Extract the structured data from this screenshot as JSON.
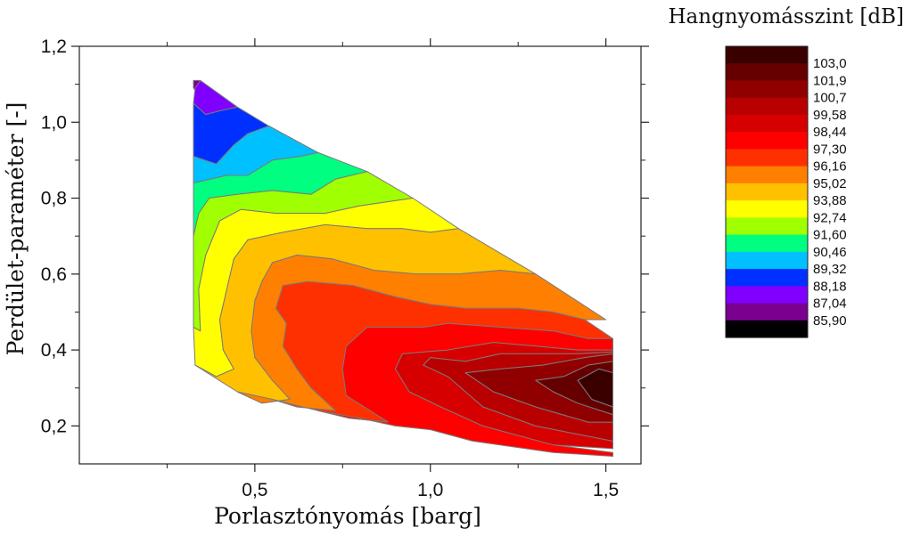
{
  "chart_data": {
    "type": "contour",
    "xlabel": "Porlasztónyomás [barg]",
    "ylabel": "Perdület-paraméter [-]",
    "legend_title": "Hangnyomásszint [dB]",
    "xlim": [
      0.0,
      1.6
    ],
    "ylim": [
      0.1,
      1.2
    ],
    "x_ticks": [
      {
        "value": 0.5,
        "label": "0,5"
      },
      {
        "value": 1.0,
        "label": "1,0"
      },
      {
        "value": 1.5,
        "label": "1,5"
      }
    ],
    "y_ticks": [
      {
        "value": 0.2,
        "label": "0,2"
      },
      {
        "value": 0.4,
        "label": "0,4"
      },
      {
        "value": 0.6,
        "label": "0,6"
      },
      {
        "value": 0.8,
        "label": "0,8"
      },
      {
        "value": 1.0,
        "label": "1,0"
      },
      {
        "value": 1.2,
        "label": "1,2"
      }
    ],
    "legend_location": "right",
    "levels": [
      "103,0",
      "101,9",
      "100,7",
      "99,58",
      "98,44",
      "97,30",
      "96,16",
      "95,02",
      "93,88",
      "92,74",
      "91,60",
      "90,46",
      "89,32",
      "88,18",
      "87,04",
      "85,90"
    ],
    "colors": [
      "#3a0000",
      "#660000",
      "#910000",
      "#b80000",
      "#d60000",
      "#ff0000",
      "#ff3000",
      "#ff8000",
      "#ffc000",
      "#ffff00",
      "#a0ff00",
      "#00ff80",
      "#00c0ff",
      "#0030ff",
      "#8000ff",
      "#7a0090",
      "#000000"
    ],
    "bands": [
      {
        "index": 15,
        "points": [
          [
            0.345,
            1.11
          ],
          [
            0.37,
            1.08
          ],
          [
            0.34,
            1.07
          ],
          [
            0.325,
            1.09
          ],
          [
            0.325,
            1.11
          ]
        ]
      },
      {
        "index": 14,
        "points": [
          [
            0.33,
            1.09
          ],
          [
            0.345,
            1.11
          ],
          [
            0.45,
            1.04
          ],
          [
            0.4,
            1.03
          ],
          [
            0.36,
            1.02
          ],
          [
            0.325,
            1.05
          ]
        ]
      },
      {
        "index": 13,
        "points": [
          [
            0.325,
            1.05
          ],
          [
            0.36,
            1.02
          ],
          [
            0.4,
            1.03
          ],
          [
            0.45,
            1.04
          ],
          [
            0.54,
            0.99
          ],
          [
            0.48,
            0.97
          ],
          [
            0.44,
            0.94
          ],
          [
            0.39,
            0.89
          ],
          [
            0.325,
            0.91
          ]
        ]
      },
      {
        "index": 12,
        "points": [
          [
            0.325,
            0.91
          ],
          [
            0.39,
            0.89
          ],
          [
            0.44,
            0.94
          ],
          [
            0.48,
            0.97
          ],
          [
            0.54,
            0.99
          ],
          [
            0.68,
            0.92
          ],
          [
            0.63,
            0.91
          ],
          [
            0.55,
            0.9
          ],
          [
            0.48,
            0.86
          ],
          [
            0.42,
            0.86
          ],
          [
            0.325,
            0.84
          ]
        ]
      },
      {
        "index": 11,
        "points": [
          [
            0.325,
            0.84
          ],
          [
            0.42,
            0.86
          ],
          [
            0.48,
            0.86
          ],
          [
            0.55,
            0.9
          ],
          [
            0.63,
            0.91
          ],
          [
            0.68,
            0.92
          ],
          [
            0.82,
            0.87
          ],
          [
            0.73,
            0.85
          ],
          [
            0.66,
            0.81
          ],
          [
            0.55,
            0.82
          ],
          [
            0.45,
            0.81
          ],
          [
            0.37,
            0.8
          ],
          [
            0.34,
            0.76
          ],
          [
            0.325,
            0.7
          ]
        ]
      },
      {
        "index": 10,
        "points": [
          [
            0.325,
            0.7
          ],
          [
            0.34,
            0.76
          ],
          [
            0.37,
            0.8
          ],
          [
            0.45,
            0.81
          ],
          [
            0.55,
            0.82
          ],
          [
            0.66,
            0.81
          ],
          [
            0.73,
            0.85
          ],
          [
            0.82,
            0.87
          ],
          [
            0.95,
            0.8
          ],
          [
            0.8,
            0.78
          ],
          [
            0.7,
            0.76
          ],
          [
            0.56,
            0.76
          ],
          [
            0.46,
            0.77
          ],
          [
            0.4,
            0.74
          ],
          [
            0.36,
            0.65
          ],
          [
            0.34,
            0.56
          ],
          [
            0.345,
            0.45
          ],
          [
            0.325,
            0.46
          ]
        ]
      },
      {
        "index": 9,
        "points": [
          [
            0.325,
            0.46
          ],
          [
            0.345,
            0.45
          ],
          [
            0.34,
            0.56
          ],
          [
            0.36,
            0.65
          ],
          [
            0.4,
            0.74
          ],
          [
            0.46,
            0.77
          ],
          [
            0.56,
            0.76
          ],
          [
            0.7,
            0.76
          ],
          [
            0.8,
            0.78
          ],
          [
            0.95,
            0.8
          ],
          [
            1.08,
            0.72
          ],
          [
            1.0,
            0.71
          ],
          [
            0.92,
            0.72
          ],
          [
            0.82,
            0.72
          ],
          [
            0.7,
            0.73
          ],
          [
            0.58,
            0.71
          ],
          [
            0.48,
            0.69
          ],
          [
            0.44,
            0.64
          ],
          [
            0.42,
            0.56
          ],
          [
            0.4,
            0.48
          ],
          [
            0.41,
            0.4
          ],
          [
            0.44,
            0.35
          ],
          [
            0.39,
            0.33
          ],
          [
            0.33,
            0.36
          ]
        ]
      },
      {
        "index": 8,
        "points": [
          [
            0.33,
            0.36
          ],
          [
            0.39,
            0.33
          ],
          [
            0.44,
            0.35
          ],
          [
            0.41,
            0.4
          ],
          [
            0.4,
            0.48
          ],
          [
            0.42,
            0.56
          ],
          [
            0.44,
            0.64
          ],
          [
            0.48,
            0.69
          ],
          [
            0.58,
            0.71
          ],
          [
            0.7,
            0.73
          ],
          [
            0.82,
            0.72
          ],
          [
            0.92,
            0.72
          ],
          [
            1.0,
            0.71
          ],
          [
            1.08,
            0.72
          ],
          [
            1.3,
            0.6
          ],
          [
            1.2,
            0.61
          ],
          [
            1.08,
            0.6
          ],
          [
            0.96,
            0.6
          ],
          [
            0.84,
            0.61
          ],
          [
            0.72,
            0.64
          ],
          [
            0.62,
            0.65
          ],
          [
            0.55,
            0.63
          ],
          [
            0.52,
            0.58
          ],
          [
            0.5,
            0.53
          ],
          [
            0.49,
            0.45
          ],
          [
            0.5,
            0.38
          ],
          [
            0.55,
            0.32
          ],
          [
            0.6,
            0.27
          ],
          [
            0.52,
            0.26
          ],
          [
            0.45,
            0.29
          ]
        ]
      },
      {
        "index": 7,
        "points": [
          [
            0.45,
            0.29
          ],
          [
            0.52,
            0.26
          ],
          [
            0.6,
            0.27
          ],
          [
            0.55,
            0.32
          ],
          [
            0.5,
            0.38
          ],
          [
            0.49,
            0.45
          ],
          [
            0.5,
            0.53
          ],
          [
            0.52,
            0.58
          ],
          [
            0.55,
            0.63
          ],
          [
            0.62,
            0.65
          ],
          [
            0.72,
            0.64
          ],
          [
            0.84,
            0.61
          ],
          [
            0.96,
            0.6
          ],
          [
            1.08,
            0.6
          ],
          [
            1.2,
            0.61
          ],
          [
            1.3,
            0.6
          ],
          [
            1.5,
            0.48
          ],
          [
            1.44,
            0.48
          ],
          [
            1.35,
            0.5
          ],
          [
            1.25,
            0.51
          ],
          [
            1.1,
            0.51
          ],
          [
            1.0,
            0.52
          ],
          [
            0.9,
            0.54
          ],
          [
            0.78,
            0.57
          ],
          [
            0.65,
            0.58
          ],
          [
            0.58,
            0.57
          ],
          [
            0.56,
            0.51
          ],
          [
            0.59,
            0.47
          ],
          [
            0.58,
            0.41
          ],
          [
            0.62,
            0.35
          ],
          [
            0.66,
            0.3
          ],
          [
            0.73,
            0.24
          ],
          [
            0.62,
            0.25
          ],
          [
            0.55,
            0.27
          ]
        ]
      },
      {
        "index": 6,
        "points": [
          [
            0.55,
            0.27
          ],
          [
            0.62,
            0.25
          ],
          [
            0.73,
            0.24
          ],
          [
            0.66,
            0.3
          ],
          [
            0.62,
            0.35
          ],
          [
            0.58,
            0.41
          ],
          [
            0.59,
            0.47
          ],
          [
            0.56,
            0.51
          ],
          [
            0.58,
            0.57
          ],
          [
            0.65,
            0.58
          ],
          [
            0.78,
            0.57
          ],
          [
            0.9,
            0.54
          ],
          [
            1.0,
            0.52
          ],
          [
            1.1,
            0.51
          ],
          [
            1.25,
            0.51
          ],
          [
            1.35,
            0.5
          ],
          [
            1.44,
            0.48
          ],
          [
            1.52,
            0.43
          ],
          [
            1.45,
            0.43
          ],
          [
            1.35,
            0.45
          ],
          [
            1.2,
            0.46
          ],
          [
            1.05,
            0.47
          ],
          [
            0.98,
            0.46
          ],
          [
            0.87,
            0.46
          ],
          [
            0.82,
            0.46
          ],
          [
            0.76,
            0.41
          ],
          [
            0.75,
            0.35
          ],
          [
            0.76,
            0.28
          ],
          [
            0.88,
            0.21
          ],
          [
            0.77,
            0.22
          ],
          [
            0.68,
            0.24
          ]
        ]
      },
      {
        "index": 5,
        "points": [
          [
            0.68,
            0.24
          ],
          [
            0.77,
            0.22
          ],
          [
            0.88,
            0.21
          ],
          [
            0.76,
            0.28
          ],
          [
            0.75,
            0.35
          ],
          [
            0.76,
            0.41
          ],
          [
            0.82,
            0.46
          ],
          [
            0.87,
            0.46
          ],
          [
            0.98,
            0.46
          ],
          [
            1.05,
            0.47
          ],
          [
            1.2,
            0.46
          ],
          [
            1.35,
            0.45
          ],
          [
            1.45,
            0.43
          ],
          [
            1.52,
            0.43
          ],
          [
            1.52,
            0.4
          ],
          [
            1.42,
            0.4
          ],
          [
            1.3,
            0.41
          ],
          [
            1.18,
            0.42
          ],
          [
            1.05,
            0.4
          ],
          [
            0.92,
            0.39
          ],
          [
            0.9,
            0.35
          ],
          [
            0.94,
            0.29
          ],
          [
            1.03,
            0.25
          ],
          [
            1.15,
            0.2
          ],
          [
            1.35,
            0.15
          ],
          [
            1.52,
            0.13
          ],
          [
            1.52,
            0.12
          ],
          [
            1.35,
            0.13
          ],
          [
            1.12,
            0.16
          ],
          [
            1.0,
            0.19
          ],
          [
            0.9,
            0.2
          ],
          [
            0.8,
            0.22
          ]
        ]
      },
      {
        "index": 4,
        "points": [
          [
            1.52,
            0.14
          ],
          [
            1.35,
            0.15
          ],
          [
            1.15,
            0.2
          ],
          [
            1.03,
            0.25
          ],
          [
            0.94,
            0.29
          ],
          [
            0.9,
            0.35
          ],
          [
            0.92,
            0.39
          ],
          [
            1.05,
            0.4
          ],
          [
            1.18,
            0.42
          ],
          [
            1.3,
            0.41
          ],
          [
            1.42,
            0.4
          ],
          [
            1.52,
            0.4
          ],
          [
            1.52,
            0.395
          ],
          [
            1.42,
            0.39
          ],
          [
            1.3,
            0.39
          ],
          [
            1.2,
            0.39
          ],
          [
            1.1,
            0.37
          ],
          [
            1.0,
            0.38
          ],
          [
            0.98,
            0.36
          ],
          [
            1.05,
            0.33
          ],
          [
            1.15,
            0.25
          ],
          [
            1.3,
            0.2
          ],
          [
            1.52,
            0.16
          ]
        ]
      },
      {
        "index": 3,
        "points": [
          [
            1.52,
            0.16
          ],
          [
            1.3,
            0.2
          ],
          [
            1.15,
            0.25
          ],
          [
            1.05,
            0.33
          ],
          [
            0.98,
            0.36
          ],
          [
            1.0,
            0.38
          ],
          [
            1.1,
            0.37
          ],
          [
            1.2,
            0.39
          ],
          [
            1.3,
            0.39
          ],
          [
            1.42,
            0.39
          ],
          [
            1.52,
            0.395
          ],
          [
            1.52,
            0.39
          ],
          [
            1.44,
            0.38
          ],
          [
            1.32,
            0.36
          ],
          [
            1.2,
            0.35
          ],
          [
            1.1,
            0.34
          ],
          [
            1.18,
            0.29
          ],
          [
            1.3,
            0.25
          ],
          [
            1.45,
            0.21
          ],
          [
            1.52,
            0.21
          ]
        ]
      },
      {
        "index": 2,
        "points": [
          [
            1.52,
            0.21
          ],
          [
            1.45,
            0.21
          ],
          [
            1.3,
            0.25
          ],
          [
            1.18,
            0.29
          ],
          [
            1.1,
            0.34
          ],
          [
            1.2,
            0.35
          ],
          [
            1.32,
            0.36
          ],
          [
            1.44,
            0.38
          ],
          [
            1.52,
            0.39
          ],
          [
            1.52,
            0.37
          ],
          [
            1.45,
            0.36
          ],
          [
            1.38,
            0.33
          ],
          [
            1.3,
            0.32
          ],
          [
            1.35,
            0.29
          ],
          [
            1.42,
            0.26
          ],
          [
            1.52,
            0.23
          ]
        ]
      },
      {
        "index": 1,
        "points": [
          [
            1.52,
            0.23
          ],
          [
            1.42,
            0.26
          ],
          [
            1.35,
            0.29
          ],
          [
            1.3,
            0.32
          ],
          [
            1.38,
            0.33
          ],
          [
            1.45,
            0.36
          ],
          [
            1.52,
            0.37
          ],
          [
            1.52,
            0.34
          ],
          [
            1.48,
            0.35
          ],
          [
            1.42,
            0.32
          ],
          [
            1.46,
            0.27
          ],
          [
            1.52,
            0.25
          ]
        ]
      },
      {
        "index": 0,
        "points": [
          [
            1.52,
            0.25
          ],
          [
            1.46,
            0.27
          ],
          [
            1.42,
            0.32
          ],
          [
            1.48,
            0.35
          ],
          [
            1.52,
            0.34
          ]
        ]
      }
    ]
  }
}
